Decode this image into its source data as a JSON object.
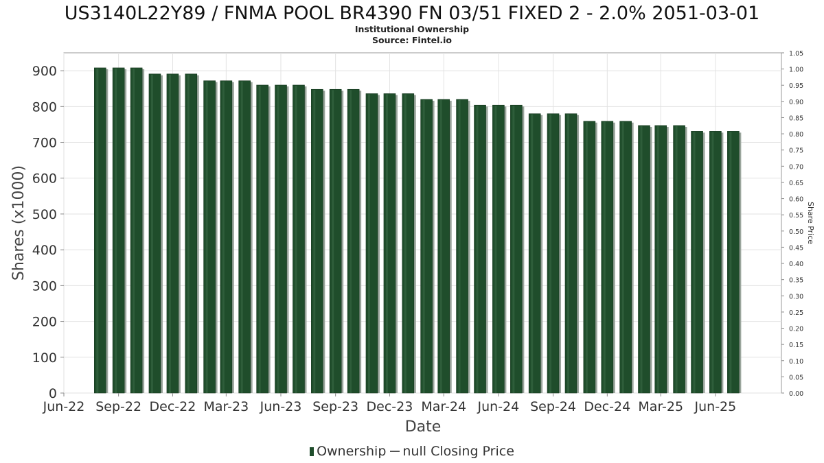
{
  "chart_data": {
    "type": "bar",
    "title": "US3140L22Y89 / FNMA POOL BR4390 FN 03/51 FIXED 2 - 2.0% 2051-03-01",
    "subtitle": "Institutional Ownership",
    "source": "Source: Fintel.io",
    "xlabel": "Date",
    "ylabel": "Shares (x1000)",
    "y2label": "Share Price",
    "ylim": [
      0,
      950
    ],
    "y2lim": [
      0,
      1.05
    ],
    "xlim": [
      "2022-06-01",
      "2025-09-20"
    ],
    "x_ticks": [
      {
        "date": "2022-06-01",
        "label": "Jun-22"
      },
      {
        "date": "2022-09-01",
        "label": "Sep-22"
      },
      {
        "date": "2022-12-01",
        "label": "Dec-22"
      },
      {
        "date": "2023-03-01",
        "label": "Mar-23"
      },
      {
        "date": "2023-06-01",
        "label": "Jun-23"
      },
      {
        "date": "2023-09-01",
        "label": "Sep-23"
      },
      {
        "date": "2023-12-01",
        "label": "Dec-23"
      },
      {
        "date": "2024-03-01",
        "label": "Mar-24"
      },
      {
        "date": "2024-06-01",
        "label": "Jun-24"
      },
      {
        "date": "2024-09-01",
        "label": "Sep-24"
      },
      {
        "date": "2024-12-01",
        "label": "Dec-24"
      },
      {
        "date": "2025-03-01",
        "label": "Mar-25"
      },
      {
        "date": "2025-06-01",
        "label": "Jun-25"
      }
    ],
    "y_ticks": [
      0,
      100,
      200,
      300,
      400,
      500,
      600,
      700,
      800,
      900
    ],
    "y2_ticks": [
      "0.00",
      "0.05",
      "0.10",
      "0.15",
      "0.20",
      "0.25",
      "0.30",
      "0.35",
      "0.40",
      "0.45",
      "0.50",
      "0.55",
      "0.60",
      "0.65",
      "0.70",
      "0.75",
      "0.80",
      "0.85",
      "0.90",
      "0.95",
      "1.00",
      "1.05"
    ],
    "grid": true,
    "legend_position": "bottom",
    "series": [
      {
        "name": "Ownership",
        "color": "#1f4d2b",
        "x": [
          "2022-08-01",
          "2022-09-01",
          "2022-10-01",
          "2022-11-01",
          "2022-12-01",
          "2023-01-01",
          "2023-02-01",
          "2023-03-01",
          "2023-04-01",
          "2023-05-01",
          "2023-06-01",
          "2023-07-01",
          "2023-08-01",
          "2023-09-01",
          "2023-10-01",
          "2023-11-01",
          "2023-12-01",
          "2024-01-01",
          "2024-02-01",
          "2024-03-01",
          "2024-04-01",
          "2024-05-01",
          "2024-06-01",
          "2024-07-01",
          "2024-08-01",
          "2024-09-01",
          "2024-10-01",
          "2024-11-01",
          "2024-12-01",
          "2025-01-01",
          "2025-02-01",
          "2025-03-01",
          "2025-04-01",
          "2025-05-01",
          "2025-06-01",
          "2025-07-01"
        ],
        "values": [
          908,
          908,
          908,
          891,
          891,
          891,
          872,
          872,
          872,
          860,
          860,
          860,
          848,
          848,
          848,
          836,
          836,
          836,
          820,
          820,
          820,
          804,
          804,
          804,
          780,
          780,
          780,
          759,
          759,
          759,
          747,
          747,
          747,
          731,
          731,
          731
        ]
      },
      {
        "name": "null Closing Price",
        "color": "#555555",
        "values": []
      }
    ]
  }
}
